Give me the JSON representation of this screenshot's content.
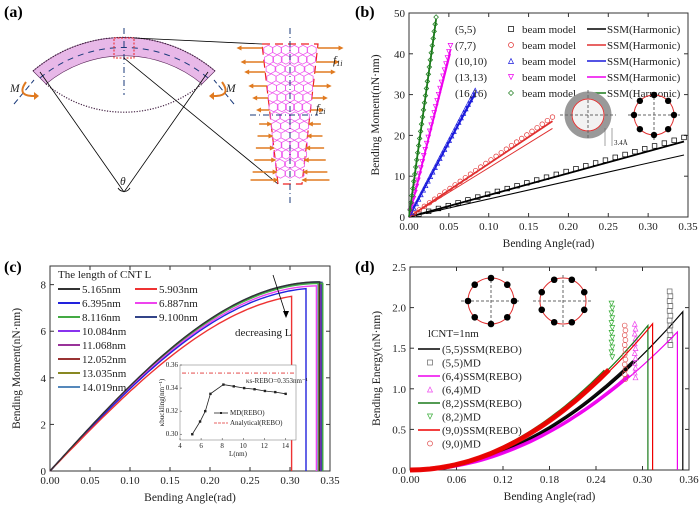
{
  "panels": {
    "a": {
      "label": "(a)",
      "moment_label": "M",
      "angle_label": "θ",
      "force1": "f1i",
      "force2": "f2i"
    },
    "b": {
      "label": "(b)",
      "ring_spacing_label": "3.4Å"
    },
    "c": {
      "label": "(c)",
      "arrow_label": "decreasing L"
    },
    "d": {
      "label": "(d)"
    }
  },
  "chart_data": [
    {
      "id": "b",
      "type": "line",
      "xlabel": "Bending Angle(rad)",
      "ylabel": "Bending Moment(nN·nm)",
      "xlim": [
        0,
        0.35
      ],
      "ylim": [
        0,
        50
      ],
      "xticks": [
        "0.00",
        "0.05",
        "0.10",
        "0.15",
        "0.20",
        "0.25",
        "0.30",
        "0.35"
      ],
      "yticks": [
        "0",
        "10",
        "20",
        "30",
        "40",
        "50"
      ],
      "legend_position": "top-right",
      "series": [
        {
          "chirality": "(5,5)",
          "marker_label": "beam model",
          "line_label": "SSM(Harmonic)",
          "color": "#000000",
          "marker": "square",
          "x_end": 0.345,
          "beam_y_end": 19.5,
          "ssm_y_end": 18.5,
          "ssm_lower_y_end": 15.2
        },
        {
          "chirality": "(7,7)",
          "marker_label": "beam model",
          "line_label": "SSM(Harmonic)",
          "color": "#e03030",
          "marker": "circle",
          "x_end": 0.18,
          "beam_y_end": 24.5,
          "ssm_y_end": 23.5,
          "ssm_lower_y_end": 21.7
        },
        {
          "chirality": "(10,10)",
          "marker_label": "beam model",
          "line_label": "SSM(Harmonic)",
          "color": "#1a1adc",
          "marker": "triangle-up",
          "x_end": 0.083,
          "beam_y_end": 31,
          "ssm_y_end": 30.5,
          "ssm_lower_y_end": 30
        },
        {
          "chirality": "(13,13)",
          "marker_label": "beam model",
          "line_label": "SSM(Harmonic)",
          "color": "#ee00ee",
          "marker": "triangle-down",
          "x_end": 0.052,
          "beam_y_end": 42,
          "ssm_y_end": 41,
          "ssm_lower_y_end": 40
        },
        {
          "chirality": "(16,16)",
          "marker_label": "beam model",
          "line_label": "SSM(Harmonic)",
          "color": "#1a7a1a",
          "marker": "diamond",
          "x_end": 0.034,
          "beam_y_end": 49,
          "ssm_y_end": 48.5,
          "ssm_lower_y_end": 48
        }
      ]
    },
    {
      "id": "c",
      "type": "line",
      "xlabel": "Bending Angle(rad)",
      "ylabel": "Bending Moment(nN·nm)",
      "xlim": [
        0,
        0.35
      ],
      "ylim": [
        0,
        8.8
      ],
      "xticks": [
        "0.00",
        "0.05",
        "0.10",
        "0.15",
        "0.20",
        "0.25",
        "0.30",
        "0.35"
      ],
      "yticks": [
        "0",
        "2",
        "4",
        "6",
        "8"
      ],
      "legend_title": "The length of CNT L",
      "legend_position": "top-left",
      "series": [
        {
          "name": "5.165nm",
          "color": "#333333",
          "peak": 8.12,
          "x_fail": 0.337
        },
        {
          "name": "5.903nm",
          "color": "#ee3333",
          "peak": 7.6,
          "x_fail": 0.302
        },
        {
          "name": "6.395nm",
          "color": "#2222dd",
          "peak": 7.85,
          "x_fail": 0.32
        },
        {
          "name": "6.887nm",
          "color": "#ee44ee",
          "peak": 7.95,
          "x_fail": 0.333
        },
        {
          "name": "8.116nm",
          "color": "#44aa44",
          "peak": 8.05,
          "x_fail": 0.341
        },
        {
          "name": "9.100nm",
          "color": "#334488",
          "peak": 8.1,
          "x_fail": 0.34
        },
        {
          "name": "10.084nm",
          "color": "#8833ee",
          "peak": 8.08,
          "x_fail": 0.339
        },
        {
          "name": "11.068nm",
          "color": "#993399",
          "peak": 8.08,
          "x_fail": 0.338
        },
        {
          "name": "12.052nm",
          "color": "#993333",
          "peak": 8.1,
          "x_fail": 0.337
        },
        {
          "name": "13.035nm",
          "color": "#888822",
          "peak": 8.1,
          "x_fail": 0.336
        },
        {
          "name": "14.019nm",
          "color": "#5588bb",
          "peak": 8.12,
          "x_fail": 0.335
        }
      ],
      "inset": {
        "xlabel": "L(nm)",
        "ylabel": "κbuckling(nm⁻¹)",
        "xlim": [
          4,
          15
        ],
        "ylim": [
          0.295,
          0.36
        ],
        "xticks": [
          "4",
          "6",
          "8",
          "10",
          "12",
          "14"
        ],
        "yticks": [
          "0.30",
          "0.32",
          "0.34",
          "0.36"
        ],
        "md_label": "MD(REBO)",
        "analytical_label": "Analytical(REBO)",
        "analytical_value": 0.353,
        "annotation": "κs-REBO=0.353nm⁻¹",
        "md_points": [
          [
            5.165,
            0.3
          ],
          [
            5.903,
            0.311
          ],
          [
            6.395,
            0.32
          ],
          [
            6.887,
            0.335
          ],
          [
            8.116,
            0.343
          ],
          [
            9.1,
            0.3415
          ],
          [
            10.084,
            0.34
          ],
          [
            11.068,
            0.339
          ],
          [
            12.052,
            0.3375
          ],
          [
            13.035,
            0.3365
          ],
          [
            14.019,
            0.335
          ]
        ]
      }
    },
    {
      "id": "d",
      "type": "line",
      "xlabel": "Bending Angle(rad)",
      "ylabel": "Bending Energy(nN·nm)",
      "xlim": [
        0,
        0.36
      ],
      "ylim": [
        0,
        2.5
      ],
      "xticks": [
        "0.00",
        "0.06",
        "0.12",
        "0.18",
        "0.24",
        "0.30",
        "0.36"
      ],
      "yticks": [
        "0.0",
        "0.5",
        "1.0",
        "1.5",
        "2.0",
        "2.5"
      ],
      "legend_title": "lCNT=1nm",
      "legend_position": "left",
      "series": [
        {
          "name": "(5,5)SSM(REBO)",
          "kind": "line",
          "color": "#000000",
          "x_end": 0.352,
          "y_end": 1.95
        },
        {
          "name": "(5,5)MD",
          "kind": "marker",
          "marker": "square",
          "color": "#666666",
          "x_end": 0.335,
          "y_end": 2.2
        },
        {
          "name": "(6,4)SSM(REBO)",
          "kind": "line",
          "color": "#ee00ee",
          "x_end": 0.345,
          "y_end": 1.7
        },
        {
          "name": "(6,4)MD",
          "kind": "marker",
          "marker": "triangle-up",
          "color": "#ee44ee",
          "x_end": 0.29,
          "y_end": 1.8
        },
        {
          "name": "(8,2)SSM(REBO)",
          "kind": "line",
          "color": "#1a7a1a",
          "x_end": 0.307,
          "y_end": 1.78
        },
        {
          "name": "(8,2)MD",
          "kind": "marker",
          "marker": "triangle-down",
          "color": "#33aa33",
          "x_end": 0.26,
          "y_end": 2.05
        },
        {
          "name": "(9,0)SSM(REBO)",
          "kind": "line",
          "color": "#ee0000",
          "x_end": 0.313,
          "y_end": 1.8
        },
        {
          "name": "(9,0)MD",
          "kind": "marker",
          "marker": "circle",
          "color": "#e05050",
          "x_end": 0.277,
          "y_end": 1.78
        }
      ]
    }
  ]
}
